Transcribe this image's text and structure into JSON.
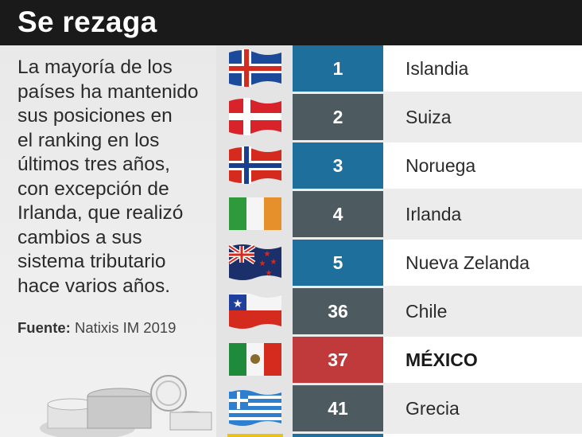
{
  "header": {
    "title": "Se rezaga"
  },
  "description": "La mayoría de los países ha mantenido sus posiciones en el ranking en los últimos tres años, con excepción de Irlanda, que realizó cambios a sus sistema tributario hace varios años.",
  "description_lines": [
    "La mayoría de los",
    "países ha mantenido",
    "sus posiciones en",
    "el ranking en los",
    "últimos tres años,",
    "con excepción de",
    "Irlanda, que realizó",
    "cambios a sus",
    "sistema tributario",
    "hace varios años."
  ],
  "source": {
    "label": "Fuente:",
    "value": "Natixis IM 2019"
  },
  "colors": {
    "header_bg": "#1a1a1a",
    "blue": "#1f6f9c",
    "gray": "#4d5b61",
    "red": "#c0393b",
    "row_white": "#ffffff",
    "row_light": "#ececec"
  },
  "ranking": [
    {
      "rank": "1",
      "country": "Islandia",
      "flag": "iceland-flag-icon"
    },
    {
      "rank": "2",
      "country": "Suiza",
      "flag": "denmark-style-flag-icon"
    },
    {
      "rank": "3",
      "country": "Noruega",
      "flag": "norway-flag-icon"
    },
    {
      "rank": "4",
      "country": "Irlanda",
      "flag": "ireland-flag-icon"
    },
    {
      "rank": "5",
      "country": "Nueva Zelanda",
      "flag": "new-zealand-flag-icon"
    },
    {
      "rank": "36",
      "country": "Chile",
      "flag": "chile-flag-icon"
    },
    {
      "rank": "37",
      "country": "MÉXICO",
      "flag": "mexico-flag-icon"
    },
    {
      "rank": "41",
      "country": "Grecia",
      "flag": "greece-flag-icon"
    }
  ]
}
